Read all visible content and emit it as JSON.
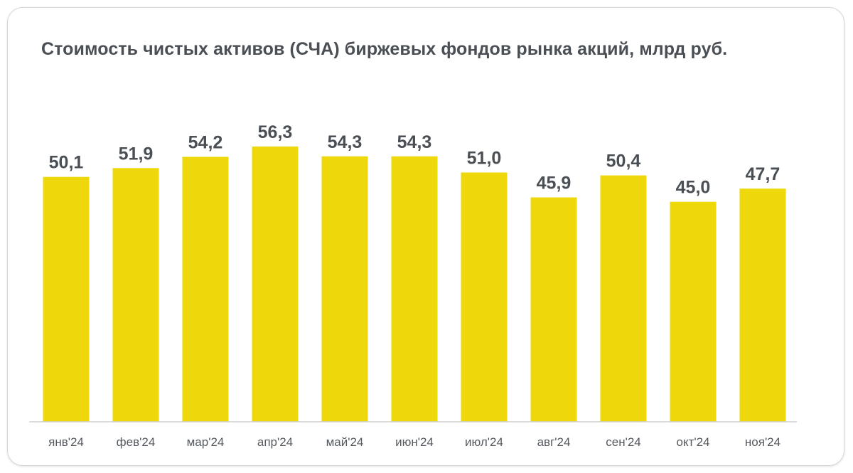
{
  "chart_data": {
    "type": "bar",
    "title": "Стоимость чистых активов (СЧА) биржевых фондов рынка акций, млрд руб.",
    "categories": [
      "янв'24",
      "фев'24",
      "мар'24",
      "апр'24",
      "май'24",
      "июн'24",
      "июл'24",
      "авг'24",
      "сен'24",
      "окт'24",
      "ноя'24"
    ],
    "values": [
      50.1,
      51.9,
      54.2,
      56.3,
      54.3,
      54.3,
      51.0,
      45.9,
      50.4,
      45.0,
      47.7
    ],
    "value_labels": [
      "50,1",
      "51,9",
      "54,2",
      "56,3",
      "54,3",
      "54,3",
      "51,0",
      "45,9",
      "50,4",
      "45,0",
      "47,7"
    ],
    "bar_color": "#eed80c",
    "ylim": [
      0,
      63
    ],
    "grid": false,
    "legend": "none"
  }
}
